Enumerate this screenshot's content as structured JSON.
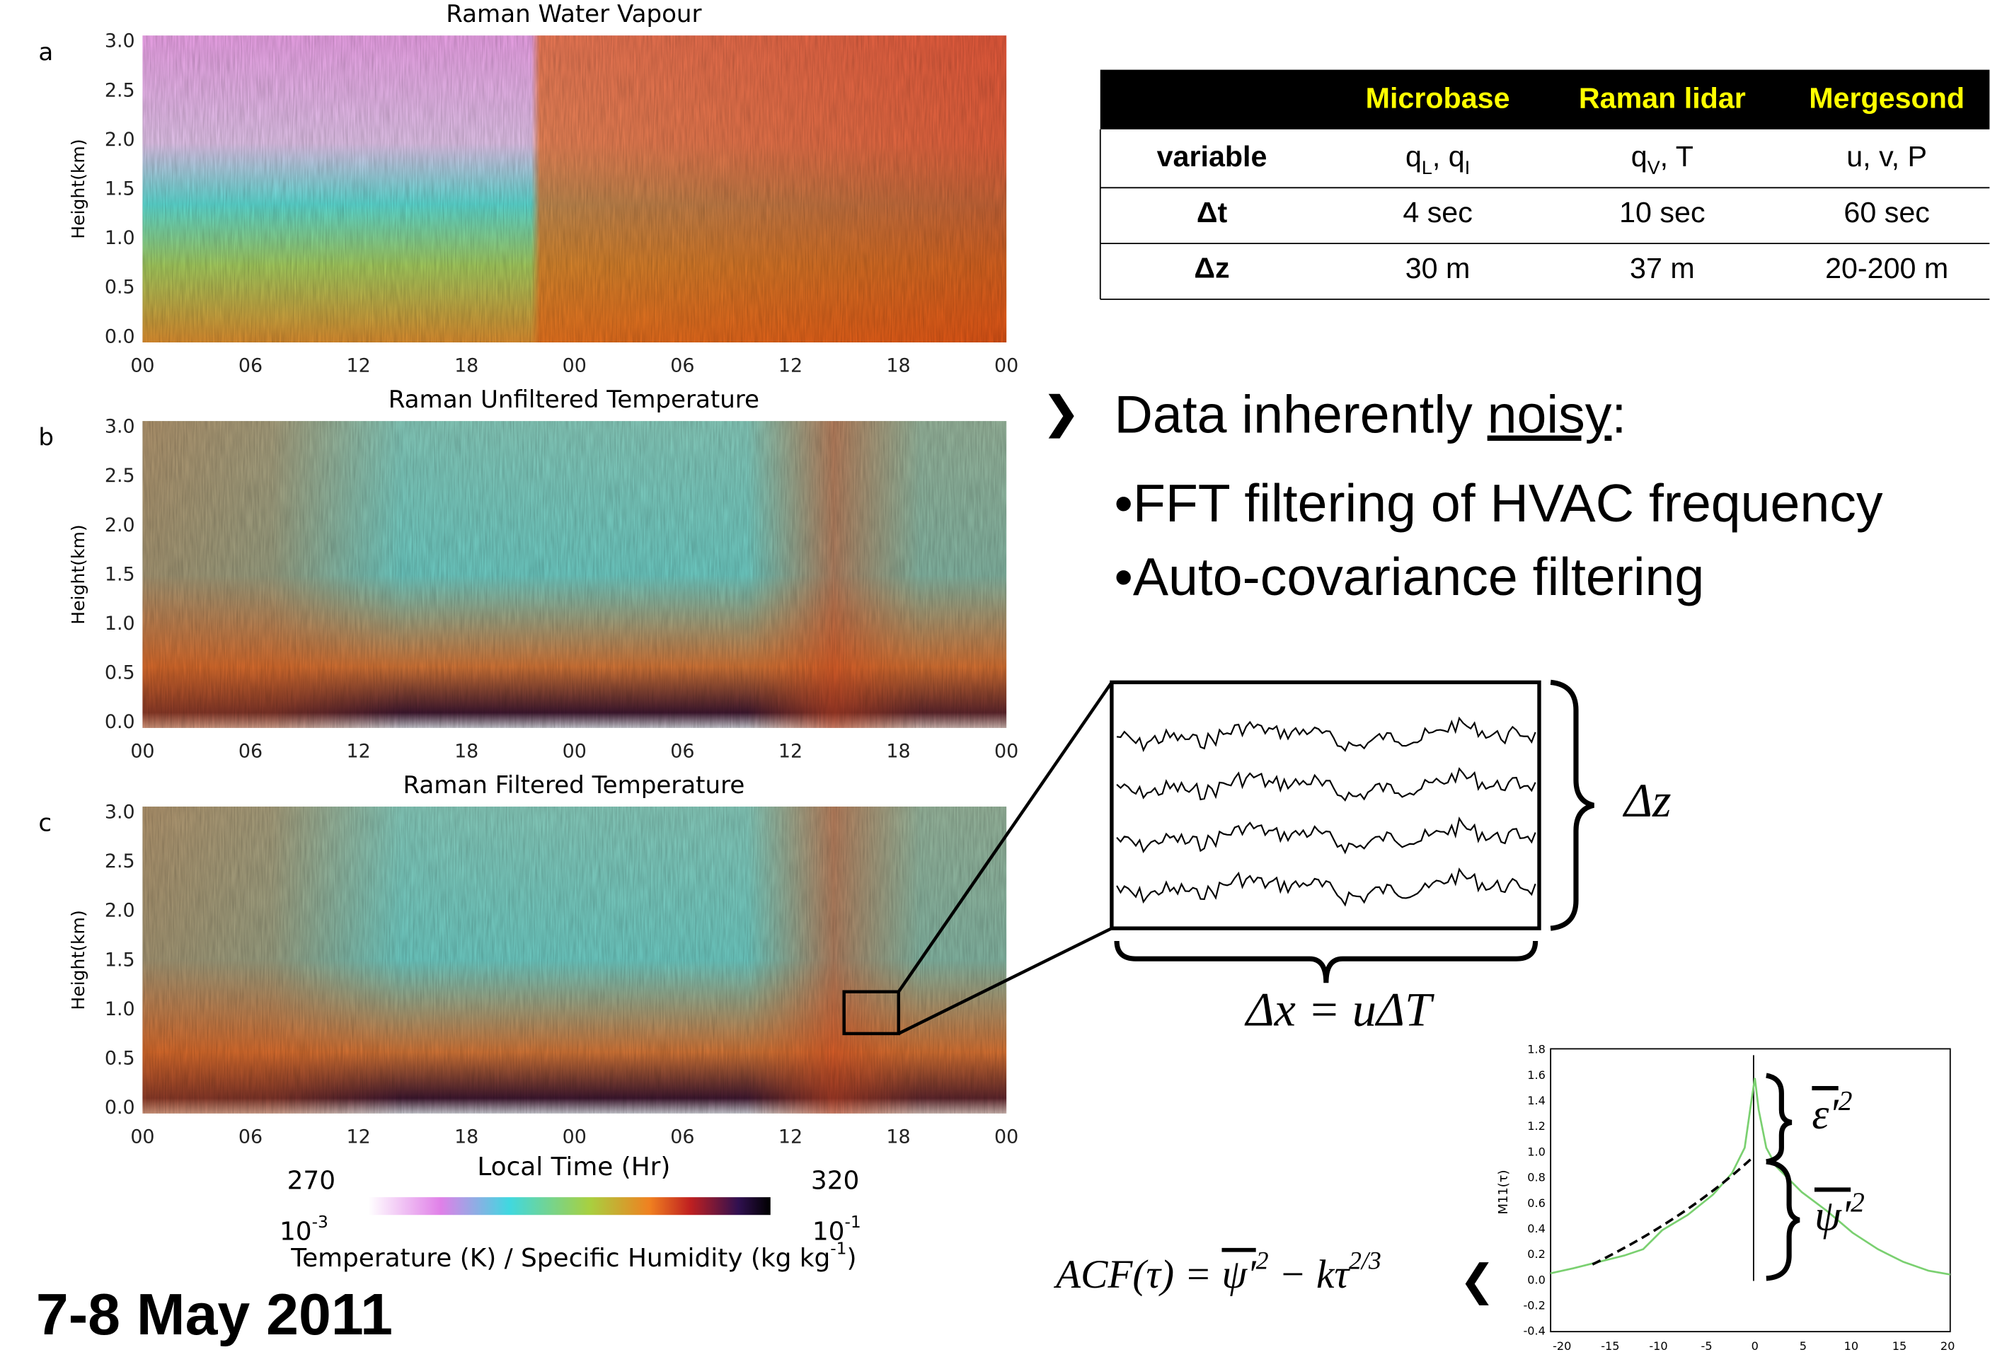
{
  "panels": [
    {
      "label": "a",
      "title": "Raman Water Vapour",
      "ylabel": "Height(km)",
      "yticks": [
        "3.0",
        "2.5",
        "2.0",
        "1.5",
        "1.0",
        "0.5",
        "0.0"
      ],
      "xticks": [
        "00",
        "06",
        "12",
        "18",
        "00",
        "06",
        "12",
        "18",
        "00"
      ]
    },
    {
      "label": "b",
      "title": "Raman Unfiltered Temperature",
      "ylabel": "Height(km)",
      "yticks": [
        "3.0",
        "2.5",
        "2.0",
        "1.5",
        "1.0",
        "0.5",
        "0.0"
      ],
      "xticks": [
        "00",
        "06",
        "12",
        "18",
        "00",
        "06",
        "12",
        "18",
        "00"
      ]
    },
    {
      "label": "c",
      "title": "Raman Filtered Temperature",
      "ylabel": "Height(km)",
      "yticks": [
        "3.0",
        "2.5",
        "2.0",
        "1.5",
        "1.0",
        "0.5",
        "0.0"
      ],
      "xticks": [
        "00",
        "06",
        "12",
        "18",
        "00",
        "06",
        "12",
        "18",
        "00"
      ]
    }
  ],
  "x_axis_title": "Local Time (Hr)",
  "colorbar": {
    "temp_min": "270",
    "temp_max": "320",
    "q_min": "10",
    "q_min_exp": "-3",
    "q_max": "10",
    "q_max_exp": "-1",
    "label": "Temperature (K) / Specific Humidity (kg kg",
    "label_exp": "-1",
    "label_end": ")"
  },
  "date": "7-8 May 2011",
  "table": {
    "header": [
      "Microbase",
      "Raman lidar",
      "Mergesond"
    ],
    "rows": [
      {
        "label": "variable",
        "cells": [
          [
            "q",
            {
              "sub": "L"
            },
            ", q",
            {
              "sub": "I"
            }
          ],
          [
            "q",
            {
              "sub": "V"
            },
            ", T"
          ],
          [
            "u, v, P"
          ]
        ]
      },
      {
        "label": "Δt",
        "cells": [
          [
            "4 sec"
          ],
          [
            "10 sec"
          ],
          [
            "60 sec"
          ]
        ]
      },
      {
        "label": "Δz",
        "cells": [
          [
            "30 m"
          ],
          [
            "37 m"
          ],
          [
            "20-200 m"
          ]
        ]
      }
    ]
  },
  "bullets": {
    "heading_pre": "Data inherently ",
    "heading_link": "noisy",
    "heading_post": ":",
    "items": [
      "•FFT filtering of HVAC frequency",
      "•Auto-covariance filtering"
    ]
  },
  "diagram": {
    "dz": "Δz",
    "dx": "Δx = uΔT"
  },
  "formula": {
    "lhs": "ACF(τ) = ",
    "psi": "ψ′",
    "psi_exp": "2",
    "rest": " − kτ",
    "rest_exp": "2/3"
  },
  "acf_chart": {
    "ylabel": "M11(τ)",
    "yticks": [
      "1.8",
      "1.6",
      "1.4",
      "1.2",
      "1.0",
      "0.8",
      "0.6",
      "0.4",
      "0.2",
      "0.0",
      "-0.2",
      "-0.4"
    ],
    "xticks": [
      "-20",
      "-15",
      "-10",
      "-5",
      "0",
      "5",
      "10",
      "15",
      "20"
    ],
    "eps": "ε′",
    "eps_exp": "2",
    "psi": "ψ′",
    "psi_exp": "2"
  }
}
